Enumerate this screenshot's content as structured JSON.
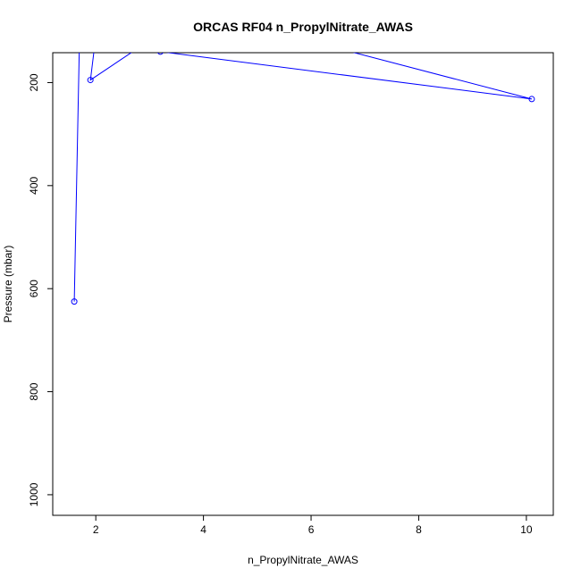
{
  "chart_data": {
    "type": "line",
    "title": "ORCAS RF04 n_PropylNitrate_AWAS",
    "xlabel": "n_PropylNitrate_AWAS",
    "ylabel": "Pressure (mbar)",
    "xlim": [
      1.2,
      10.5
    ],
    "ylim": [
      1040,
      142
    ],
    "y_reversed": true,
    "x_ticks": [
      2,
      4,
      6,
      8,
      10
    ],
    "y_ticks": [
      200,
      400,
      600,
      800,
      1000
    ],
    "grid": false,
    "series": [
      {
        "color": "#0000ff",
        "markers": "open-circle",
        "points": [
          {
            "x": 1.6,
            "y": 625
          },
          {
            "x": 1.7,
            "y": 100
          },
          {
            "x": 2.0,
            "y": 110
          },
          {
            "x": 1.9,
            "y": 195
          },
          {
            "x": 2.9,
            "y": 125
          },
          {
            "x": 3.2,
            "y": 140
          },
          {
            "x": 10.1,
            "y": 232
          },
          {
            "x": 6.0,
            "y": 120
          }
        ]
      }
    ]
  }
}
